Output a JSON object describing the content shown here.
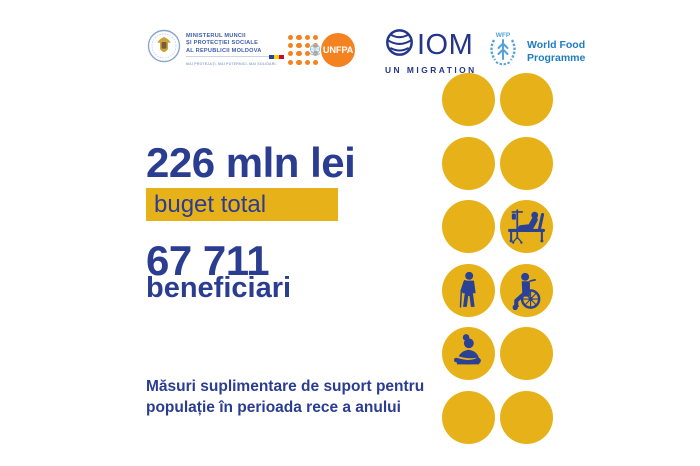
{
  "colors": {
    "primary_blue": "#2B3D91",
    "accent_yellow": "#E7B219",
    "icon_blue": "#2B4196",
    "unfpa_orange": "#F58220",
    "iom_blue": "#24368C",
    "wfp_blue": "#1E7CC0"
  },
  "header": {
    "ministry": {
      "line1": "MINISTERUL MUNCII",
      "line2": "ȘI PROTECȚIEI SOCIALE",
      "line3": "AL REPUBLICII MOLDOVA",
      "tagline": "MAI PROTEJAȚI.  MAI PUTERNICI.  MAI SOLIDARI."
    },
    "unfpa": {
      "label": "UNFPA"
    },
    "iom": {
      "label": "IOM",
      "sublabel": "UN MIGRATION"
    },
    "wfp": {
      "emblem": "WFP",
      "line1": "World Food",
      "line2": "Programme"
    }
  },
  "stats": {
    "budget_value": "226 mln lei",
    "budget_label": "buget total",
    "beneficiaries_value": "67 711",
    "beneficiaries_label": "beneficiari"
  },
  "footer": {
    "line1": "Măsuri suplimentare de suport pentru",
    "line2": "populație în perioada rece a anului"
  },
  "icon_grid": {
    "rows": 6,
    "cols": 2,
    "cells": [
      "plain",
      "plain",
      "plain",
      "plain",
      "plain",
      "hospital-bed",
      "person-with-cane",
      "wheelchair",
      "mother-with-baby",
      "plain",
      "plain",
      "plain"
    ]
  }
}
